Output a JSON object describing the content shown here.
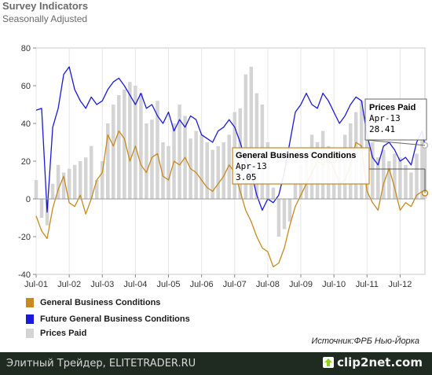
{
  "chart_data": {
    "type": "line",
    "title": "Survey Indicators",
    "subtitle": "Seasonally Adjusted",
    "ylim": [
      -40,
      80
    ],
    "yticks": [
      -40,
      -20,
      0,
      20,
      40,
      60,
      80
    ],
    "x_start": "2001-07",
    "x_end": "2013-04",
    "x_ticks": [
      "Jul-01",
      "Jul-02",
      "Jul-03",
      "Jul-04",
      "Jul-05",
      "Jul-06",
      "Jul-07",
      "Jul-08",
      "Jul-09",
      "Jul-10",
      "Jul-11",
      "Jul-12"
    ],
    "grid": "vertical",
    "legend_position": "bottom-left",
    "series": [
      {
        "name": "General Business Conditions",
        "kind": "line",
        "color": "#c8891e",
        "x": [
          "2001-07",
          "2001-09",
          "2001-11",
          "2002-01",
          "2002-03",
          "2002-05",
          "2002-07",
          "2002-09",
          "2002-11",
          "2003-01",
          "2003-03",
          "2003-05",
          "2003-07",
          "2003-09",
          "2003-11",
          "2004-01",
          "2004-03",
          "2004-05",
          "2004-07",
          "2004-09",
          "2004-11",
          "2005-01",
          "2005-03",
          "2005-05",
          "2005-07",
          "2005-09",
          "2005-11",
          "2006-01",
          "2006-03",
          "2006-05",
          "2006-07",
          "2006-09",
          "2006-11",
          "2007-01",
          "2007-03",
          "2007-05",
          "2007-07",
          "2007-09",
          "2007-11",
          "2008-01",
          "2008-03",
          "2008-05",
          "2008-07",
          "2008-09",
          "2008-11",
          "2009-01",
          "2009-03",
          "2009-05",
          "2009-07",
          "2009-09",
          "2009-11",
          "2010-01",
          "2010-03",
          "2010-05",
          "2010-07",
          "2010-09",
          "2010-11",
          "2011-01",
          "2011-03",
          "2011-05",
          "2011-07",
          "2011-09",
          "2011-11",
          "2012-01",
          "2012-03",
          "2012-05",
          "2012-07",
          "2012-09",
          "2012-11",
          "2013-01",
          "2013-03",
          "2013-04"
        ],
        "y": [
          -9,
          -17,
          -21,
          -5,
          5,
          12,
          -2,
          -4,
          2,
          -8,
          0,
          10,
          14,
          34,
          28,
          36,
          32,
          20,
          28,
          18,
          14,
          22,
          24,
          12,
          10,
          20,
          18,
          22,
          16,
          14,
          10,
          6,
          4,
          8,
          12,
          18,
          14,
          4,
          -6,
          -12,
          -20,
          -26,
          -28,
          -36,
          -34,
          -26,
          -14,
          -4,
          2,
          8,
          14,
          20,
          18,
          22,
          16,
          8,
          10,
          18,
          30,
          28,
          4,
          -2,
          -6,
          8,
          16,
          6,
          -6,
          -2,
          -4,
          2,
          4,
          3.05
        ]
      },
      {
        "name": "Future General Business Conditions",
        "kind": "line",
        "color": "#1a1ad8",
        "x": [
          "2001-07",
          "2001-09",
          "2001-11",
          "2002-01",
          "2002-03",
          "2002-05",
          "2002-07",
          "2002-09",
          "2002-11",
          "2003-01",
          "2003-03",
          "2003-05",
          "2003-07",
          "2003-09",
          "2003-11",
          "2004-01",
          "2004-03",
          "2004-05",
          "2004-07",
          "2004-09",
          "2004-11",
          "2005-01",
          "2005-03",
          "2005-05",
          "2005-07",
          "2005-09",
          "2005-11",
          "2006-01",
          "2006-03",
          "2006-05",
          "2006-07",
          "2006-09",
          "2006-11",
          "2007-01",
          "2007-03",
          "2007-05",
          "2007-07",
          "2007-09",
          "2007-11",
          "2008-01",
          "2008-03",
          "2008-05",
          "2008-07",
          "2008-09",
          "2008-11",
          "2009-01",
          "2009-03",
          "2009-05",
          "2009-07",
          "2009-09",
          "2009-11",
          "2010-01",
          "2010-03",
          "2010-05",
          "2010-07",
          "2010-09",
          "2010-11",
          "2011-01",
          "2011-03",
          "2011-05",
          "2011-07",
          "2011-09",
          "2011-11",
          "2012-01",
          "2012-03",
          "2012-05",
          "2012-07",
          "2012-09",
          "2012-11",
          "2013-01",
          "2013-03",
          "2013-04"
        ],
        "y": [
          47,
          48,
          -7,
          38,
          48,
          66,
          70,
          58,
          52,
          48,
          54,
          50,
          52,
          58,
          62,
          64,
          60,
          55,
          50,
          56,
          48,
          50,
          44,
          40,
          46,
          36,
          42,
          38,
          44,
          42,
          34,
          32,
          30,
          36,
          38,
          42,
          38,
          30,
          20,
          14,
          2,
          -6,
          0,
          -2,
          2,
          14,
          30,
          46,
          50,
          56,
          50,
          48,
          56,
          52,
          46,
          40,
          44,
          50,
          54,
          52,
          34,
          22,
          18,
          28,
          30,
          26,
          20,
          22,
          18,
          30,
          36,
          28
        ]
      },
      {
        "name": "Prices Paid",
        "kind": "bar",
        "color": "#d4d4d4",
        "x": [
          "2001-07",
          "2001-09",
          "2001-11",
          "2002-01",
          "2002-03",
          "2002-05",
          "2002-07",
          "2002-09",
          "2002-11",
          "2003-01",
          "2003-03",
          "2003-05",
          "2003-07",
          "2003-09",
          "2003-11",
          "2004-01",
          "2004-03",
          "2004-05",
          "2004-07",
          "2004-09",
          "2004-11",
          "2005-01",
          "2005-03",
          "2005-05",
          "2005-07",
          "2005-09",
          "2005-11",
          "2006-01",
          "2006-03",
          "2006-05",
          "2006-07",
          "2006-09",
          "2006-11",
          "2007-01",
          "2007-03",
          "2007-05",
          "2007-07",
          "2007-09",
          "2007-11",
          "2008-01",
          "2008-03",
          "2008-05",
          "2008-07",
          "2008-09",
          "2008-11",
          "2009-01",
          "2009-03",
          "2009-05",
          "2009-07",
          "2009-09",
          "2009-11",
          "2010-01",
          "2010-03",
          "2010-05",
          "2010-07",
          "2010-09",
          "2010-11",
          "2011-01",
          "2011-03",
          "2011-05",
          "2011-07",
          "2011-09",
          "2011-11",
          "2012-01",
          "2012-03",
          "2012-05",
          "2012-07",
          "2012-09",
          "2012-11",
          "2013-01",
          "2013-03",
          "2013-04"
        ],
        "y": [
          10,
          -10,
          -14,
          8,
          18,
          14,
          16,
          18,
          20,
          22,
          28,
          10,
          20,
          40,
          50,
          55,
          58,
          62,
          60,
          56,
          40,
          42,
          52,
          30,
          28,
          40,
          50,
          44,
          32,
          36,
          34,
          30,
          26,
          28,
          30,
          34,
          46,
          48,
          66,
          70,
          56,
          50,
          30,
          6,
          -20,
          -16,
          -12,
          8,
          18,
          24,
          34,
          30,
          36,
          28,
          24,
          22,
          34,
          40,
          46,
          52,
          44,
          30,
          22,
          26,
          20,
          24,
          22,
          18,
          14,
          24,
          36,
          28.41
        ]
      }
    ],
    "tooltips": [
      {
        "title": "Prices Paid",
        "date": "Apr-13",
        "value": "28.41"
      },
      {
        "title": "General Business Conditions",
        "date": "Apr-13",
        "value": "3.05"
      }
    ],
    "source": "Источник:ФРБ Нью-Йорка"
  },
  "footer": {
    "left_text": "Элитный Трейдер, ELITETRADER.RU",
    "brand": "clip2net.com"
  }
}
